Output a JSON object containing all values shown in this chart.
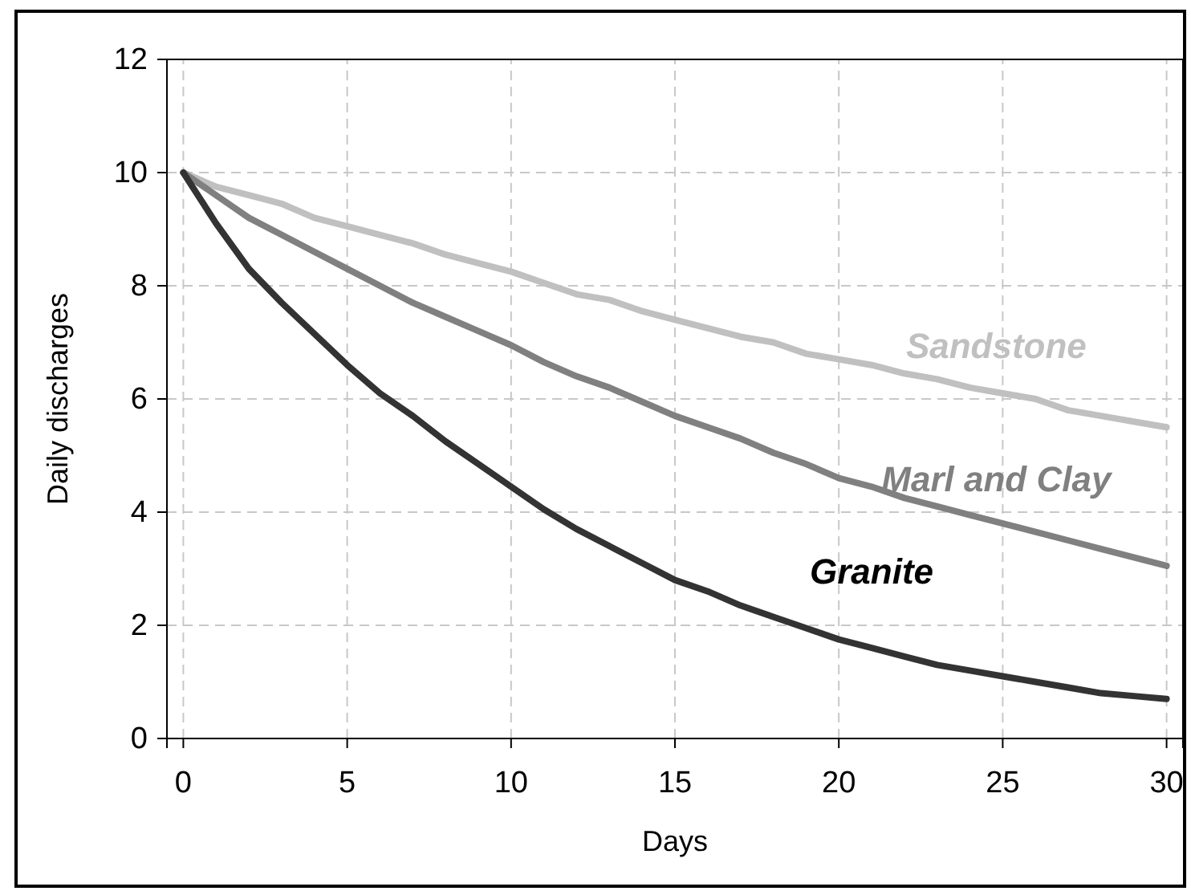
{
  "chart_data": {
    "type": "line",
    "xlabel": "Days",
    "ylabel": "Daily discharges",
    "x": [
      0,
      1,
      2,
      3,
      4,
      5,
      6,
      7,
      8,
      9,
      10,
      11,
      12,
      13,
      14,
      15,
      16,
      17,
      18,
      19,
      20,
      21,
      22,
      23,
      24,
      25,
      26,
      27,
      28,
      29,
      30
    ],
    "xlim": [
      -0.5,
      30.5
    ],
    "xticks": [
      0,
      5,
      10,
      15,
      20,
      25,
      30
    ],
    "ylim": [
      0,
      12
    ],
    "yticks": [
      0,
      2,
      4,
      6,
      8,
      10,
      12
    ],
    "grid": true,
    "legend": false,
    "line_style": "solid",
    "marker": "none",
    "series": [
      {
        "name": "Sandstone",
        "color": "#c0c0c0",
        "values": [
          10,
          9.75,
          9.6,
          9.45,
          9.2,
          9.05,
          8.9,
          8.75,
          8.55,
          8.4,
          8.25,
          8.05,
          7.85,
          7.75,
          7.55,
          7.4,
          7.25,
          7.1,
          7.0,
          6.8,
          6.7,
          6.6,
          6.45,
          6.35,
          6.2,
          6.1,
          6.0,
          5.8,
          5.7,
          5.6,
          5.5
        ]
      },
      {
        "name": "Marl and Clay",
        "color": "#808080",
        "values": [
          10,
          9.6,
          9.2,
          8.9,
          8.6,
          8.3,
          8.0,
          7.7,
          7.45,
          7.2,
          6.95,
          6.65,
          6.4,
          6.2,
          5.95,
          5.7,
          5.5,
          5.3,
          5.05,
          4.85,
          4.6,
          4.45,
          4.25,
          4.1,
          3.95,
          3.8,
          3.65,
          3.5,
          3.35,
          3.2,
          3.05
        ]
      },
      {
        "name": "Granite",
        "color": "#333333",
        "values": [
          10,
          9.1,
          8.3,
          7.7,
          7.15,
          6.6,
          6.1,
          5.7,
          5.25,
          4.85,
          4.45,
          4.05,
          3.7,
          3.4,
          3.1,
          2.8,
          2.6,
          2.35,
          2.15,
          1.95,
          1.75,
          1.6,
          1.45,
          1.3,
          1.2,
          1.1,
          1.0,
          0.9,
          0.8,
          0.75,
          0.7
        ]
      }
    ]
  }
}
